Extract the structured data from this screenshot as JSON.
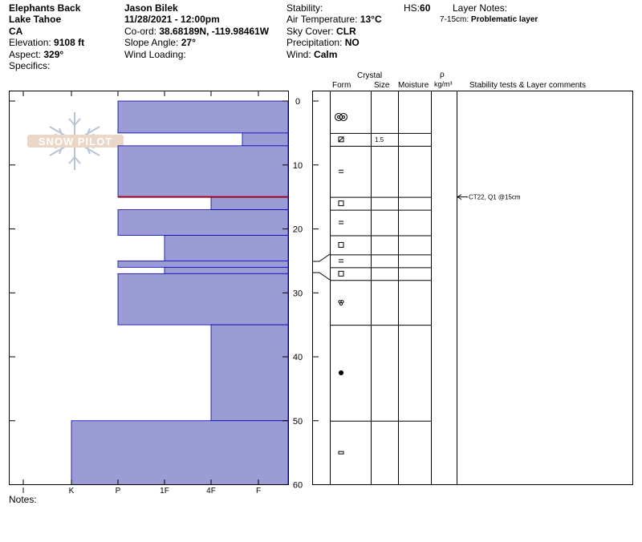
{
  "header": {
    "location": {
      "name": "Elephants Back",
      "range": "Lake Tahoe",
      "state": "CA",
      "elevation_label": "Elevation:",
      "elevation": "9108 ft",
      "aspect_label": "Aspect:",
      "aspect": "329°",
      "specifics_label": "Specifics:"
    },
    "observer": {
      "name": "Jason Bilek",
      "datetime": "11/28/2021 - 12:00pm",
      "coord_label": "Co-ord:",
      "coord": "38.68189N, -119.98461W",
      "slope_label": "Slope Angle:",
      "slope": "27°",
      "wind_loading_label": "Wind Loading:"
    },
    "conditions": {
      "stability_label": "Stability:",
      "air_temp_label": "Air Temperature:",
      "air_temp": "13°C",
      "sky_label": "Sky Cover:",
      "sky": "CLR",
      "precip_label": "Precipitation:",
      "precip": "NO",
      "wind_label": "Wind:",
      "wind": "Calm"
    },
    "hs_label": "HS:",
    "hs": "60",
    "layer_notes_label": "Layer Notes:",
    "layer_note_range": "7-15cm:",
    "layer_note_text": "Problematic layer"
  },
  "watermark": "SNOW PILOT",
  "notes_label": "Notes:",
  "columns": {
    "crystal": "Crystal",
    "form": "Form",
    "size": "Size",
    "moisture": "Moisture",
    "rho": "ρ",
    "density_unit": "kg/m³",
    "comments": "Stability tests & Layer comments"
  },
  "chart_data": {
    "type": "bar",
    "orientation": "horizontal",
    "y_axis": {
      "label": "",
      "range": [
        0,
        60
      ],
      "ticks": [
        "0",
        "10",
        "20",
        "30",
        "40",
        "50",
        "60"
      ],
      "inverted": true
    },
    "x_axis": {
      "label": "",
      "categories": [
        "I",
        "K",
        "P",
        "1F",
        "4F",
        "F"
      ],
      "reversed": true
    },
    "hardness_layers": [
      {
        "top": 0,
        "bottom": 5,
        "hardness": "P"
      },
      {
        "top": 5,
        "bottom": 7,
        "hardness": "F+"
      },
      {
        "top": 7,
        "bottom": 15,
        "hardness": "P"
      },
      {
        "top": 15,
        "bottom": 17,
        "hardness": "4F"
      },
      {
        "top": 17,
        "bottom": 21,
        "hardness": "P"
      },
      {
        "top": 21,
        "bottom": 25,
        "hardness": "1F"
      },
      {
        "top": 25,
        "bottom": 26,
        "hardness": "P"
      },
      {
        "top": 26,
        "bottom": 27,
        "hardness": "1F"
      },
      {
        "top": 27,
        "bottom": 35,
        "hardness": "P"
      },
      {
        "top": 35,
        "bottom": 50,
        "hardness": "4F"
      },
      {
        "top": 50,
        "bottom": 60,
        "hardness": "K"
      }
    ],
    "failure_plane_depth": 15,
    "column_boundaries": [
      5,
      7,
      15,
      17,
      21,
      24,
      26,
      28,
      35,
      50
    ],
    "stability_tests": [
      {
        "depth": 15,
        "text": "CT22, Q1 @15cm"
      }
    ],
    "crystal_forms": [
      {
        "depth": 2.5,
        "form": "PPgp"
      },
      {
        "depth": 6,
        "form": "FCxr"
      },
      {
        "depth": 11,
        "form": "RG"
      },
      {
        "depth": 16,
        "form": "FC"
      },
      {
        "depth": 19,
        "form": "RG"
      },
      {
        "depth": 22.5,
        "form": "FC"
      },
      {
        "depth": 25,
        "form": "RG"
      },
      {
        "depth": 27,
        "form": "FC"
      },
      {
        "depth": 31.5,
        "form": "MF"
      },
      {
        "depth": 42.5,
        "form": "IF"
      },
      {
        "depth": 55,
        "form": "ICE"
      }
    ],
    "sizes": [
      {
        "depth": 6,
        "value": "1.5"
      }
    ],
    "colors": {
      "fill": "#9b9bd6",
      "stroke": "#0000b0",
      "failure": "#a00020"
    }
  }
}
